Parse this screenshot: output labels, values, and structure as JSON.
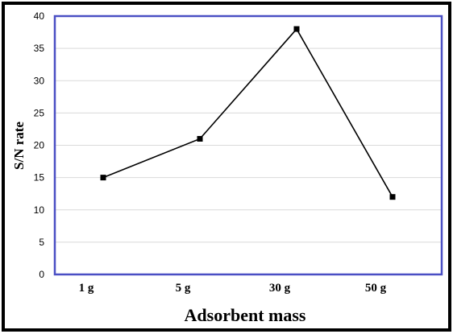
{
  "chart_data": {
    "type": "line",
    "categories": [
      "1 g",
      "5 g",
      "30 g",
      "50 g"
    ],
    "values": [
      15,
      21,
      38,
      12
    ],
    "title": "",
    "xlabel": "Adsorbent mass",
    "ylabel": "S/N rate",
    "ylim": [
      0,
      40
    ],
    "yticks": [
      0,
      5,
      10,
      15,
      20,
      25,
      30,
      35,
      40
    ],
    "grid": true,
    "colors": {
      "line": "#000000",
      "marker": "#000000",
      "plot_border": "#4a4fc4",
      "grid": "#d9d9d9",
      "outer_border": "#000000"
    }
  }
}
